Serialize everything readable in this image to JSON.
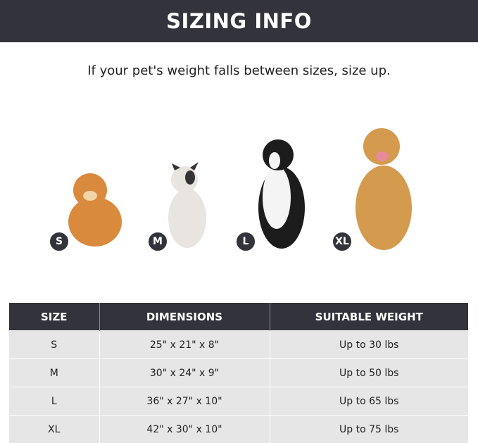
{
  "banner": {
    "title": "SIZING INFO"
  },
  "subtitle": "If your pet's weight falls between sizes, size up.",
  "dogs": [
    {
      "badge": "S",
      "color": "#d98a3c"
    },
    {
      "badge": "M",
      "color": "#e8e4df"
    },
    {
      "badge": "L",
      "color": "#1c1c1c"
    },
    {
      "badge": "XL",
      "color": "#d49a4e"
    }
  ],
  "table": {
    "headers": [
      "SIZE",
      "DIMENSIONS",
      "SUITABLE WEIGHT"
    ],
    "rows": [
      [
        "S",
        "25\" x 21\" x 8\"",
        "Up to 30 lbs"
      ],
      [
        "M",
        "30\" x 24\" x 9\"",
        "Up to 50 lbs"
      ],
      [
        "L",
        "36\" x 27\" x 10\"",
        "Up to 65 lbs"
      ],
      [
        "XL",
        "42\" x 30\" x 10\"",
        "Up to 75 lbs"
      ]
    ]
  }
}
